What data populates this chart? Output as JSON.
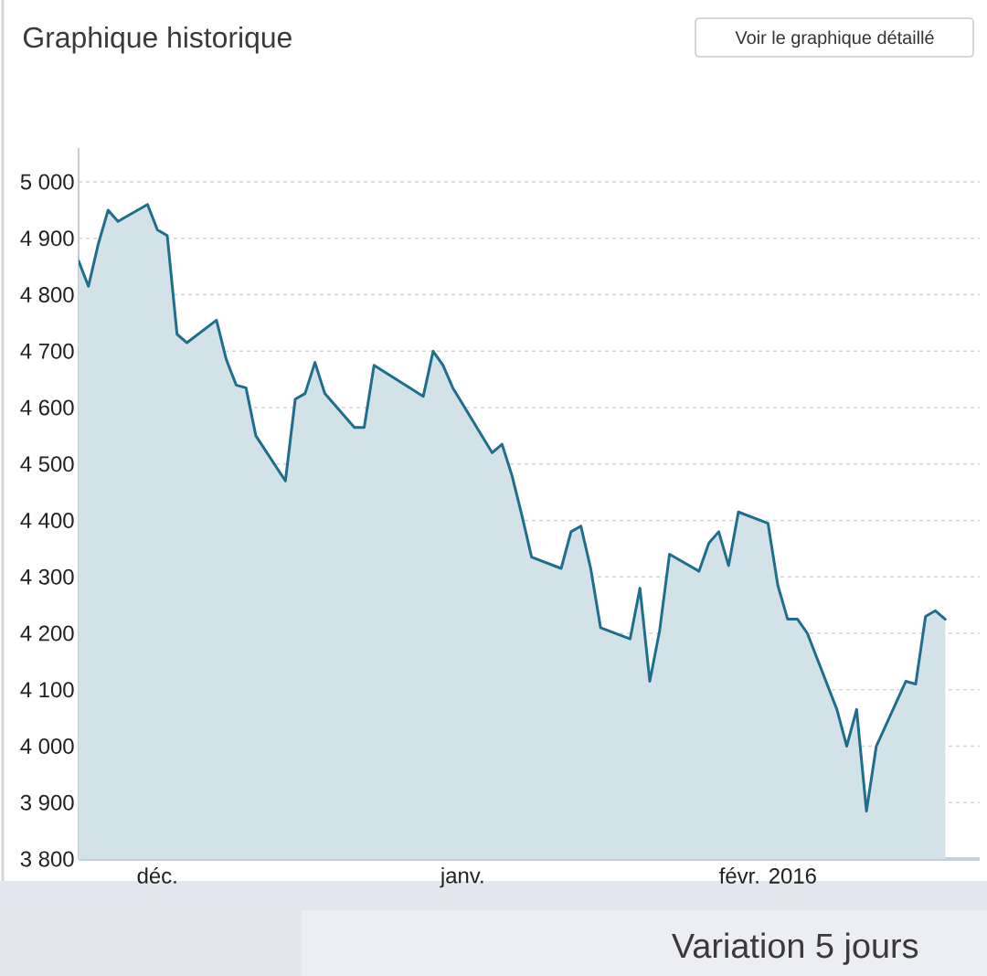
{
  "chart_data": {
    "type": "area",
    "title": "Graphique historique",
    "annotations": [
      "Voir le graphique détaillé",
      "Variation 5 jours"
    ],
    "x": [
      "2015-11-23",
      "2015-11-24",
      "2015-11-25",
      "2015-11-26",
      "2015-11-27",
      "2015-11-30",
      "2015-12-01",
      "2015-12-02",
      "2015-12-03",
      "2015-12-04",
      "2015-12-07",
      "2015-12-08",
      "2015-12-09",
      "2015-12-10",
      "2015-12-11",
      "2015-12-14",
      "2015-12-15",
      "2015-12-16",
      "2015-12-17",
      "2015-12-18",
      "2015-12-21",
      "2015-12-22",
      "2015-12-23",
      "2015-12-28",
      "2015-12-29",
      "2015-12-30",
      "2015-12-31",
      "2016-01-04",
      "2016-01-05",
      "2016-01-06",
      "2016-01-07",
      "2016-01-08",
      "2016-01-11",
      "2016-01-12",
      "2016-01-13",
      "2016-01-14",
      "2016-01-15",
      "2016-01-18",
      "2016-01-19",
      "2016-01-20",
      "2016-01-21",
      "2016-01-22",
      "2016-01-25",
      "2016-01-26",
      "2016-01-27",
      "2016-01-28",
      "2016-01-29",
      "2016-02-01",
      "2016-02-02",
      "2016-02-03",
      "2016-02-04",
      "2016-02-05",
      "2016-02-08",
      "2016-02-09",
      "2016-02-10",
      "2016-02-11",
      "2016-02-12",
      "2016-02-15",
      "2016-02-16",
      "2016-02-17",
      "2016-02-18",
      "2016-02-19"
    ],
    "values": [
      4860,
      4815,
      4890,
      4950,
      4930,
      4960,
      4915,
      4905,
      4730,
      4715,
      4755,
      4685,
      4640,
      4635,
      4550,
      4470,
      4615,
      4625,
      4680,
      4625,
      4565,
      4565,
      4675,
      4620,
      4700,
      4675,
      4635,
      4520,
      4535,
      4480,
      4410,
      4335,
      4315,
      4380,
      4390,
      4315,
      4210,
      4190,
      4280,
      4115,
      4205,
      4340,
      4310,
      4360,
      4380,
      4320,
      4415,
      4395,
      4285,
      4225,
      4225,
      4200,
      4065,
      4000,
      4065,
      3885,
      4000,
      4115,
      4110,
      4230,
      4240,
      4225
    ],
    "color": "#1f6e8c",
    "xlim": [
      "2015-11-23",
      "2016-02-22T12:00"
    ],
    "xticks": [
      {
        "value": "2015-12-01",
        "label": "déc."
      },
      {
        "value": "2016-01-01",
        "label": "janv."
      },
      {
        "value": "2016-02-01",
        "label": "févr. 2016"
      }
    ],
    "ylim": [
      3800,
      5060
    ],
    "yticks": [
      {
        "value": 3800,
        "label": "3 800"
      },
      {
        "value": 3900,
        "label": "3 900"
      },
      {
        "value": 4000,
        "label": "4 000"
      },
      {
        "value": 4100,
        "label": "4 100"
      },
      {
        "value": 4200,
        "label": "4 200"
      },
      {
        "value": 4300,
        "label": "4 300"
      },
      {
        "value": 4400,
        "label": "4 400"
      },
      {
        "value": 4500,
        "label": "4 500"
      },
      {
        "value": 4600,
        "label": "4 600"
      },
      {
        "value": 4700,
        "label": "4 700"
      },
      {
        "value": 4800,
        "label": "4 800"
      },
      {
        "value": 4900,
        "label": "4 900"
      },
      {
        "value": 5000,
        "label": "5 000"
      }
    ],
    "grid": "y"
  }
}
